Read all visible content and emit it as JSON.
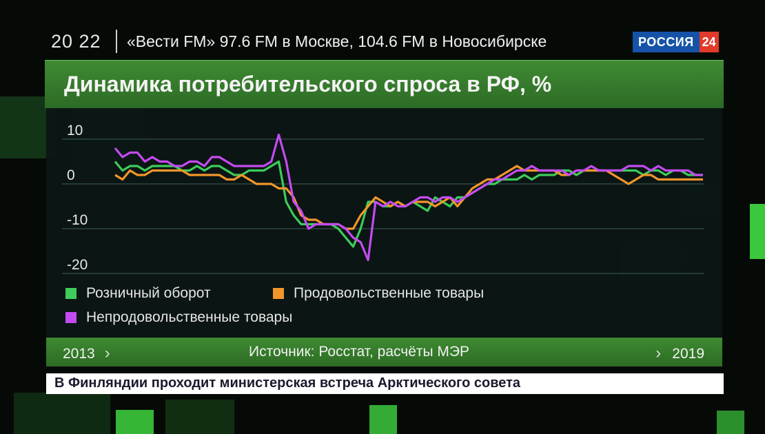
{
  "header": {
    "clock": "20 22",
    "ticker": "«Вести FM» 97.6 FM в Москве, 104.6 FM в Новосибирске",
    "logo_main": "РОССИЯ",
    "logo_num": "24"
  },
  "footer": {
    "start_year": "2013",
    "source": "Источник: Росстат, расчёты МЭР",
    "end_year": "2019"
  },
  "news": {
    "headline": "В Финляндии проходит министерская встреча Арктического совета"
  },
  "colors": {
    "bar_green": "#3f8a33",
    "logo_blue": "#1653a8",
    "logo_red": "#e23a2a"
  },
  "chart_data": {
    "type": "line",
    "title": "Динамика потребительского спроса в РФ, %",
    "x_range": [
      "2013",
      "2019"
    ],
    "ylim": [
      -20,
      10
    ],
    "yticks": [
      10,
      0,
      -10,
      -20
    ],
    "grid": true,
    "legend_position": "bottom-left",
    "series": [
      {
        "name": "Розничный оборот",
        "color": "#3ecc5a",
        "values": [
          5,
          3,
          4,
          4,
          3,
          4,
          4,
          4,
          4,
          3,
          3,
          4,
          3,
          4,
          4,
          3,
          2,
          2,
          3,
          3,
          3,
          4,
          5,
          -4,
          -7,
          -9,
          -9,
          -9,
          -9,
          -9,
          -10,
          -12,
          -14,
          -10,
          -4,
          -4,
          -5,
          -5,
          -4,
          -5,
          -4,
          -5,
          -6,
          -3,
          -4,
          -5,
          -3,
          -3,
          -2,
          -1,
          0,
          0,
          1,
          1,
          1,
          2,
          1,
          2,
          2,
          2,
          3,
          3,
          2,
          3,
          3,
          3,
          3,
          3,
          3,
          3,
          3,
          2,
          3,
          3,
          2,
          3,
          3,
          2,
          2,
          2
        ]
      },
      {
        "name": "Продовольственные товары",
        "color": "#f2962a",
        "values": [
          2,
          1,
          3,
          2,
          2,
          3,
          3,
          3,
          3,
          3,
          2,
          2,
          2,
          2,
          2,
          1,
          1,
          2,
          1,
          0,
          0,
          0,
          -1,
          -1,
          -3,
          -7,
          -8,
          -8,
          -9,
          -9,
          -9,
          -10,
          -10,
          -7,
          -5,
          -3,
          -4,
          -5,
          -4,
          -5,
          -4,
          -4,
          -4,
          -5,
          -4,
          -3,
          -5,
          -3,
          -1,
          0,
          1,
          1,
          2,
          3,
          4,
          3,
          3,
          3,
          3,
          3,
          2,
          2,
          3,
          3,
          3,
          3,
          3,
          2,
          1,
          0,
          1,
          2,
          2,
          1,
          1,
          1,
          1,
          1,
          1,
          1
        ]
      },
      {
        "name": "Непродовольственные товары",
        "color": "#c44bf2",
        "values": [
          8,
          6,
          7,
          7,
          5,
          6,
          5,
          5,
          4,
          4,
          5,
          5,
          4,
          6,
          6,
          5,
          4,
          4,
          4,
          4,
          4,
          5,
          11,
          5,
          -4,
          -6,
          -10,
          -9,
          -9,
          -9,
          -9,
          -10,
          -12,
          -13,
          -17,
          -4,
          -5,
          -4,
          -5,
          -5,
          -4,
          -3,
          -3,
          -4,
          -3,
          -3,
          -4,
          -3,
          -2,
          -1,
          0,
          1,
          1,
          2,
          3,
          3,
          4,
          3,
          3,
          3,
          3,
          2,
          3,
          3,
          4,
          3,
          3,
          3,
          3,
          4,
          4,
          4,
          3,
          4,
          3,
          3,
          3,
          3,
          2,
          2
        ]
      }
    ]
  }
}
